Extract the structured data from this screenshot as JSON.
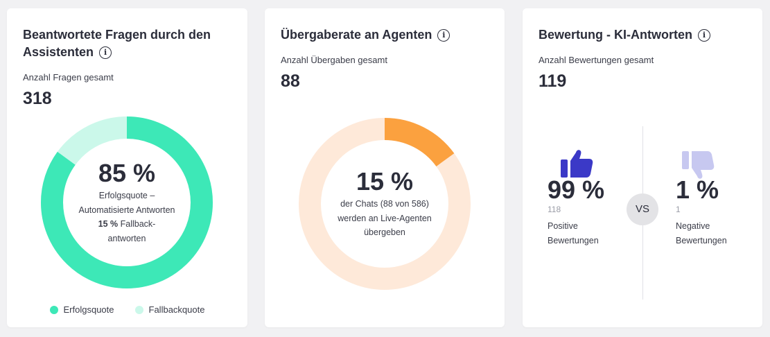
{
  "cards": [
    {
      "title": "Beantwortete Fragen durch den Assistenten",
      "sub_label": "Anzahl Fragen gesamt",
      "total": "318",
      "donut": {
        "percent_label": "85 %",
        "line1": "Erfolgsquote –",
        "line2": "Automatisierte Antworten",
        "line3_bold": "15 %",
        "line3_rest": " Fallback-",
        "line4": "antworten",
        "main_fraction": 0.85,
        "main_color": "#3de8b7",
        "rest_color": "#cbf8ea"
      },
      "legend": [
        {
          "label": "Erfolgsquote",
          "color": "#3de8b7"
        },
        {
          "label": "Fallbackquote",
          "color": "#cbf8ea"
        }
      ]
    },
    {
      "title": "Übergaberate an Agenten",
      "sub_label": "Anzahl Übergaben gesamt",
      "total": "88",
      "donut": {
        "percent_label": "15 %",
        "line1": "der Chats (88 von 586)",
        "line2": "werden an Live-Agenten",
        "line3": "übergeben",
        "main_fraction": 0.15,
        "main_color": "#fba13f",
        "rest_color": "#fee9d9"
      }
    },
    {
      "title": "Bewertung - KI-Antworten",
      "sub_label": "Anzahl Bewertungen gesamt",
      "total": "119",
      "vs_label": "VS",
      "positive": {
        "percent": "99 %",
        "count": "118",
        "label_line1": "Positive",
        "label_line2": "Bewertungen",
        "icon": "thumbs-up-icon",
        "color": "#3b39c7"
      },
      "negative": {
        "percent": "1 %",
        "count": "1",
        "label_line1": "Negative",
        "label_line2": "Bewertungen",
        "icon": "thumbs-down-icon",
        "color": "#c7c8f0"
      }
    }
  ],
  "info_icon_glyph": "i"
}
